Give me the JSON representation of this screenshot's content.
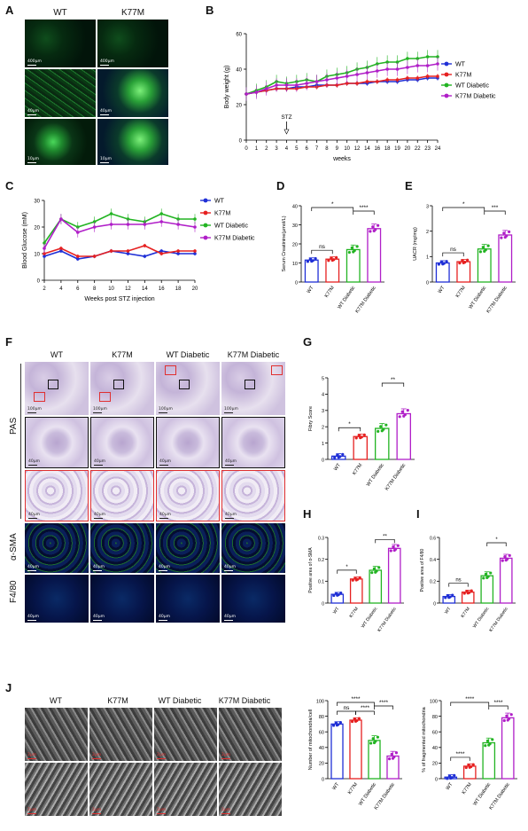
{
  "panels": {
    "A": {
      "label": "A",
      "cols": [
        "WT",
        "K77M"
      ],
      "scalebars": [
        [
          "400μm",
          "400μm"
        ],
        [
          "40μm",
          "40μm"
        ],
        [
          "10μm",
          "10μm"
        ]
      ]
    },
    "B": {
      "label": "B"
    },
    "C": {
      "label": "C"
    },
    "D": {
      "label": "D"
    },
    "E": {
      "label": "E"
    },
    "F": {
      "label": "F",
      "cols": [
        "WT",
        "K77M",
        "WT Diabetic",
        "K77M Diabetic"
      ],
      "rows": [
        "PAS",
        "α-SMA",
        "F4/80"
      ],
      "scalebars": [
        "100μm",
        "40μm",
        "40μm",
        "40μm",
        "40μm"
      ]
    },
    "G": {
      "label": "G"
    },
    "H": {
      "label": "H"
    },
    "I": {
      "label": "I"
    },
    "J": {
      "label": "J",
      "cols": [
        "WT",
        "K77M",
        "WT Diabetic",
        "K77M Diabetic"
      ],
      "scalebar": "2μm"
    }
  },
  "colors": {
    "WT": "#1f2fd6",
    "K77M": "#e62020",
    "WT Diabetic": "#22b422",
    "K77M Diabetic": "#b01ec8"
  },
  "chart_data": [
    {
      "id": "B",
      "type": "line",
      "x": [
        "0",
        "1",
        "2",
        "3",
        "4",
        "5",
        "6",
        "7",
        "8",
        "9",
        "10",
        "12",
        "14",
        "16",
        "18",
        "19",
        "20",
        "22",
        "23",
        "24"
      ],
      "xlabel": "weeks",
      "ylabel": "Body weight (g)",
      "ylim": [
        0,
        60
      ],
      "yticks": [
        0,
        20,
        40,
        60
      ],
      "annotation": "STZ",
      "series": [
        {
          "name": "WT",
          "values": [
            26,
            27,
            28,
            29,
            29,
            30,
            30,
            31,
            31,
            31,
            32,
            32,
            32,
            33,
            33,
            33,
            34,
            34,
            35,
            35
          ]
        },
        {
          "name": "K77M",
          "values": [
            26,
            27,
            28,
            29,
            29,
            29,
            30,
            30,
            31,
            31,
            32,
            32,
            33,
            33,
            34,
            34,
            35,
            35,
            36,
            36
          ]
        },
        {
          "name": "WT Diabetic",
          "values": [
            26,
            28,
            30,
            33,
            32,
            33,
            34,
            33,
            36,
            37,
            38,
            40,
            41,
            43,
            44,
            44,
            46,
            46,
            47,
            47
          ]
        },
        {
          "name": "K77M Diabetic",
          "values": [
            26,
            27,
            29,
            31,
            31,
            31,
            32,
            33,
            34,
            35,
            36,
            37,
            38,
            39,
            40,
            40,
            41,
            42,
            42,
            43
          ]
        }
      ],
      "legend": "right"
    },
    {
      "id": "C",
      "type": "line",
      "x": [
        "2",
        "4",
        "6",
        "8",
        "10",
        "12",
        "14",
        "16",
        "18",
        "20"
      ],
      "xlabel": "Weeks post STZ injection",
      "ylabel": "Blood Glucose (mM)",
      "ylim": [
        0,
        30
      ],
      "yticks": [
        0,
        10,
        20,
        30
      ],
      "series": [
        {
          "name": "WT",
          "values": [
            9,
            11,
            8,
            9,
            11,
            10,
            9,
            11,
            10,
            10
          ]
        },
        {
          "name": "K77M",
          "values": [
            10,
            12,
            9,
            9,
            11,
            11,
            13,
            10,
            11,
            11
          ]
        },
        {
          "name": "WT Diabetic",
          "values": [
            14,
            23,
            20,
            22,
            25,
            23,
            22,
            25,
            23,
            23
          ]
        },
        {
          "name": "K77M Diabetic",
          "values": [
            12,
            23,
            18,
            20,
            21,
            21,
            21,
            22,
            21,
            20
          ]
        }
      ],
      "legend": "right"
    },
    {
      "id": "D",
      "type": "bar",
      "categories": [
        "WT",
        "K77M",
        "WT Diabetic",
        "K77M Diabetic"
      ],
      "values": [
        11.5,
        12,
        17,
        28
      ],
      "ylabel": "Serum Creatinine(μmol/L)",
      "ylim": [
        0,
        40
      ],
      "yticks": [
        0,
        10,
        20,
        30,
        40
      ],
      "sig": [
        {
          "a": 0,
          "b": 1,
          "t": "ns"
        },
        {
          "a": 0,
          "b": 2,
          "t": "*"
        },
        {
          "a": 2,
          "b": 3,
          "t": "****"
        }
      ]
    },
    {
      "id": "E",
      "type": "bar",
      "categories": [
        "WT",
        "K77M",
        "WT Diabetic",
        "K77M Diabetic"
      ],
      "values": [
        0.75,
        0.8,
        1.3,
        1.85
      ],
      "ylabel": "UACR (mg/mg)",
      "ylim": [
        0,
        3
      ],
      "yticks": [
        0,
        1,
        2,
        3
      ],
      "sig": [
        {
          "a": 0,
          "b": 1,
          "t": "ns"
        },
        {
          "a": 0,
          "b": 2,
          "t": "*"
        },
        {
          "a": 2,
          "b": 3,
          "t": "***"
        }
      ]
    },
    {
      "id": "G",
      "type": "bar",
      "categories": [
        "WT",
        "K77M",
        "WT Diabetic",
        "K77M Diabetic"
      ],
      "values": [
        0.2,
        1.4,
        1.9,
        2.8
      ],
      "ylabel": "Fibry Score",
      "ylim": [
        0,
        5
      ],
      "yticks": [
        0,
        1,
        2,
        3,
        4,
        5
      ],
      "sig": [
        {
          "a": 0,
          "b": 1,
          "t": "*"
        },
        {
          "a": 2,
          "b": 3,
          "t": "**"
        }
      ]
    },
    {
      "id": "H",
      "type": "bar",
      "categories": [
        "WT",
        "K77M",
        "WT Diabetic",
        "K77M Diabetic"
      ],
      "values": [
        0.04,
        0.11,
        0.15,
        0.25
      ],
      "ylabel": "Positive area of α-SMA",
      "ylim": [
        0,
        0.3
      ],
      "yticks": [
        0,
        0.1,
        0.2,
        0.3
      ],
      "sig": [
        {
          "a": 0,
          "b": 1,
          "t": "*"
        },
        {
          "a": 2,
          "b": 3,
          "t": "**"
        }
      ]
    },
    {
      "id": "I",
      "type": "bar",
      "categories": [
        "WT",
        "K77M",
        "WT Diabetic",
        "K77M Diabetic"
      ],
      "values": [
        0.06,
        0.1,
        0.25,
        0.41
      ],
      "ylabel": "Positive area of F4/80",
      "ylim": [
        0,
        0.6
      ],
      "yticks": [
        0,
        0.2,
        0.4,
        0.6
      ],
      "sig": [
        {
          "a": 0,
          "b": 1,
          "t": "ns"
        },
        {
          "a": 2,
          "b": 3,
          "t": "*"
        }
      ]
    },
    {
      "id": "J1",
      "type": "bar",
      "categories": [
        "WT",
        "K77M",
        "WT Diabetic",
        "K77M Diabetic"
      ],
      "values": [
        70,
        75,
        49,
        29
      ],
      "ylabel": "Number of mitochondria/cell",
      "ylim": [
        0,
        100
      ],
      "yticks": [
        0,
        20,
        40,
        60,
        80,
        100
      ],
      "sig": [
        {
          "a": 0,
          "b": 1,
          "t": "ns"
        },
        {
          "a": 1,
          "b": 2,
          "t": "****"
        },
        {
          "a": 0,
          "b": 2,
          "t": "****"
        },
        {
          "a": 2,
          "b": 3,
          "t": "****"
        }
      ]
    },
    {
      "id": "J2",
      "type": "bar",
      "categories": [
        "WT",
        "K77M",
        "WT Diabetic",
        "K77M Diabetic"
      ],
      "values": [
        2,
        16,
        46,
        78
      ],
      "ylabel": "% of fragmented mitochondria",
      "ylim": [
        0,
        100
      ],
      "yticks": [
        0,
        20,
        40,
        60,
        80,
        100
      ],
      "sig": [
        {
          "a": 0,
          "b": 1,
          "t": "****"
        },
        {
          "a": 0,
          "b": 2,
          "t": "****"
        },
        {
          "a": 2,
          "b": 3,
          "t": "****"
        }
      ]
    }
  ]
}
